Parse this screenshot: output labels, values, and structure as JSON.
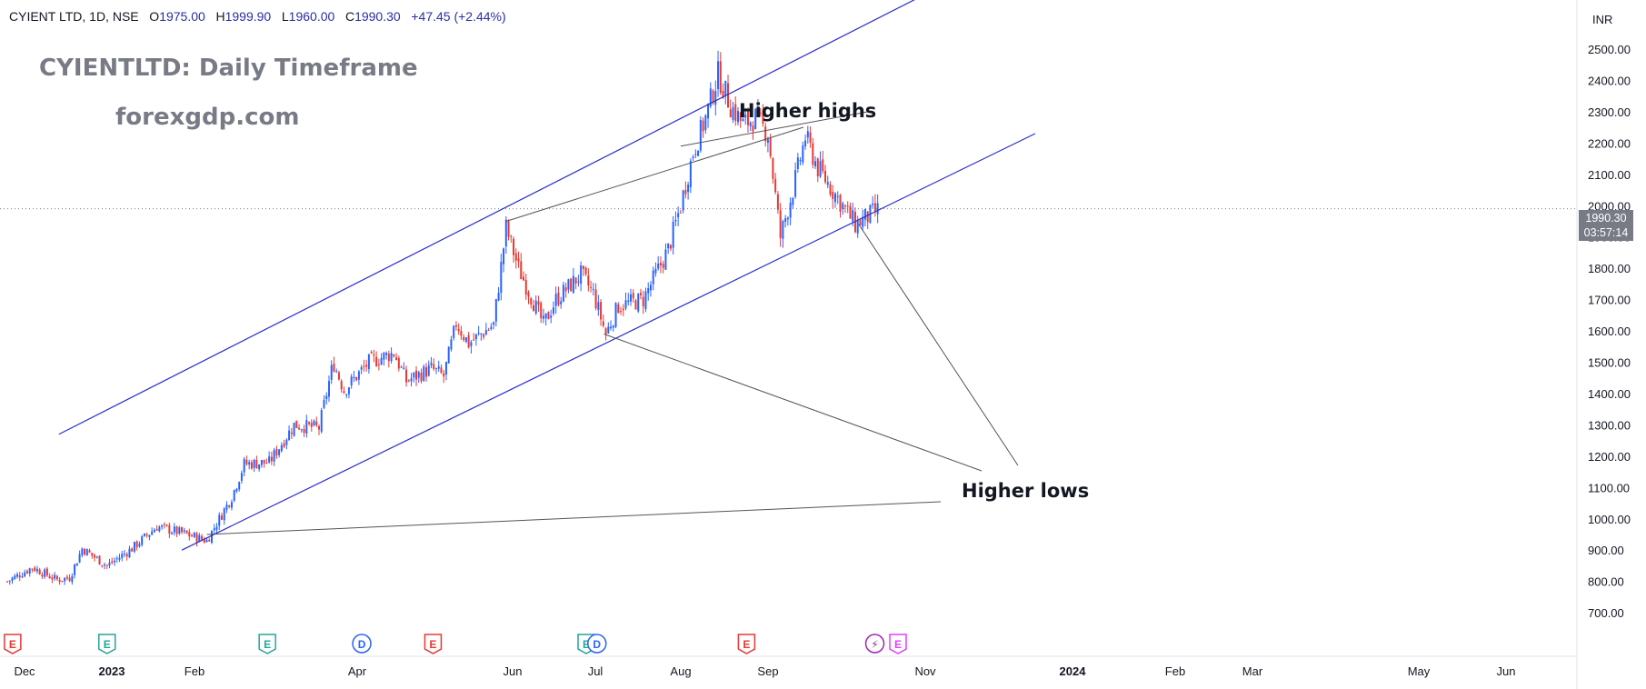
{
  "header": {
    "symbol": "CYIENT LTD, 1D, NSE",
    "open_label": "O",
    "open": "1975.00",
    "high_label": "H",
    "high": "1999.90",
    "low_label": "L",
    "low": "1960.00",
    "close_label": "C",
    "close": "1990.30",
    "change": "+47.45 (+2.44%)"
  },
  "watermark": {
    "title": "CYIENTLTD: Daily Timeframe",
    "site": "forexgdp.com"
  },
  "annotations": {
    "higher_highs": "Higher highs",
    "higher_lows": "Higher lows"
  },
  "price_axis": {
    "currency": "INR",
    "last_price": "1990.30",
    "countdown": "03:57:14"
  },
  "colors": {
    "up": "#2962ff",
    "down": "#e53935",
    "channel": "#2a2ecd",
    "event_earnings": "#e53935",
    "event_earnings_green": "#26a69a",
    "event_dividend": "#2962ff",
    "event_split": "#9c27b0"
  },
  "chart_data": {
    "type": "candlestick",
    "symbol": "CYIENT LTD",
    "timeframe": "1D",
    "exchange": "NSE",
    "y_ticks": [
      700,
      800,
      900,
      1000,
      1100,
      1200,
      1300,
      1400,
      1500,
      1600,
      1700,
      1800,
      1900,
      2000,
      2100,
      2200,
      2300,
      2400,
      2500
    ],
    "x_ticks": [
      "Dec",
      "2023",
      "Feb",
      "Apr",
      "Jun",
      "Jul",
      "Aug",
      "Sep",
      "Nov",
      "2024",
      "Feb",
      "Mar",
      "May",
      "Jun"
    ],
    "bold_x_ticks": [
      "2023",
      "2024"
    ],
    "price_path": [
      [
        "2022-12-01",
        800
      ],
      [
        "2022-12-15",
        845
      ],
      [
        "2022-12-29",
        805
      ],
      [
        "2023-01-05",
        812
      ],
      [
        "2023-01-12",
        905
      ],
      [
        "2023-01-26",
        850
      ],
      [
        "2023-02-09",
        905
      ],
      [
        "2023-02-23",
        975
      ],
      [
        "2023-03-09",
        955
      ],
      [
        "2023-03-23",
        930
      ],
      [
        "2023-04-06",
        1070
      ],
      [
        "2023-04-13",
        1175
      ],
      [
        "2023-04-27",
        1180
      ],
      [
        "2023-05-11",
        1300
      ],
      [
        "2023-05-25",
        1290
      ],
      [
        "2023-06-02",
        1500
      ],
      [
        "2023-06-08",
        1410
      ],
      [
        "2023-06-22",
        1500
      ],
      [
        "2023-07-06",
        1530
      ],
      [
        "2023-07-13",
        1440
      ],
      [
        "2023-07-27",
        1480
      ],
      [
        "2023-08-03",
        1455
      ],
      [
        "2023-08-10",
        1625
      ],
      [
        "2023-08-17",
        1560
      ],
      [
        "2023-08-31",
        1620
      ],
      [
        "2023-09-07",
        1930
      ],
      [
        "2023-09-14",
        1800
      ],
      [
        "2023-09-28",
        1620
      ],
      [
        "2023-10-05",
        1700
      ],
      [
        "2023-10-19",
        1780
      ],
      [
        "2023-10-26",
        1720
      ],
      [
        "2023-11-02",
        1590
      ],
      [
        "2023-11-09",
        1680
      ],
      [
        "2023-11-23",
        1700
      ],
      [
        "2023-12-07",
        1860
      ],
      [
        "2023-12-14",
        2000
      ],
      [
        "2023-12-21",
        2170
      ],
      [
        "2023-12-28",
        2280
      ],
      [
        "2024-01-04",
        2420
      ],
      [
        "2024-01-11",
        2320
      ],
      [
        "2024-01-18",
        2260
      ],
      [
        "2024-01-25",
        2280
      ],
      [
        "2024-02-01",
        2230
      ],
      [
        "2024-02-08",
        1900
      ],
      [
        "2024-02-15",
        2050
      ],
      [
        "2024-02-22",
        2220
      ],
      [
        "2024-02-29",
        2120
      ],
      [
        "2024-03-07",
        2060
      ],
      [
        "2024-03-14",
        2000
      ],
      [
        "2024-03-21",
        1940
      ],
      [
        "2024-03-28",
        1965
      ],
      [
        "2024-04-04",
        1990
      ]
    ],
    "channel_upper": [
      [
        "2022-12-30",
        1270
      ],
      [
        "2024-05-01",
        2680
      ]
    ],
    "channel_lower": [
      [
        "2023-03-09",
        900
      ],
      [
        "2024-06-30",
        2230
      ]
    ],
    "last_price": 1990.3,
    "events": [
      {
        "date": "2022-12-04",
        "label": "E",
        "kind": "earnings-red"
      },
      {
        "date": "2023-01-26",
        "label": "E",
        "kind": "earnings-green"
      },
      {
        "date": "2023-04-26",
        "label": "E",
        "kind": "earnings-green"
      },
      {
        "date": "2023-06-18",
        "label": "D",
        "kind": "dividend"
      },
      {
        "date": "2023-07-28",
        "label": "E",
        "kind": "earnings-red"
      },
      {
        "date": "2023-10-22",
        "label": "E",
        "kind": "earnings-green"
      },
      {
        "date": "2023-10-28",
        "label": "D",
        "kind": "dividend"
      },
      {
        "date": "2024-01-20",
        "label": "E",
        "kind": "earnings-red"
      },
      {
        "date": "2024-04-01",
        "label": "⚡",
        "kind": "split"
      },
      {
        "date": "2024-04-14",
        "label": "E",
        "kind": "earnings-upcoming"
      }
    ]
  }
}
